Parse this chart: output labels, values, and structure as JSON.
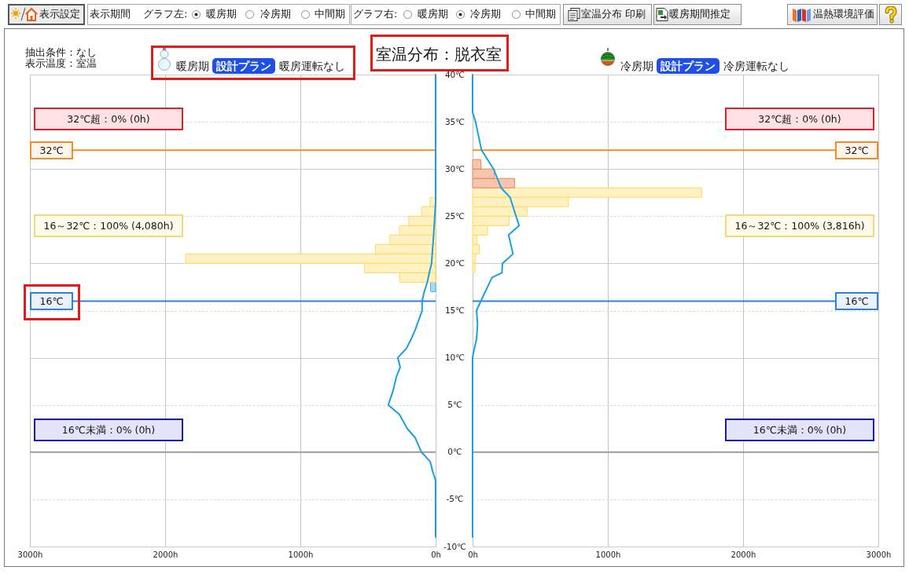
{
  "chart_data": [
    {
      "type": "other",
      "annotations": [
        "表示設定",
        "表示期間",
        "グラフ左:",
        "暖房期",
        "冷房期",
        "中間期",
        "グラフ右:",
        "暖房期",
        "冷房期",
        "中間期",
        "室温分布 印刷",
        "暖房期間推定",
        "温熱環境評価"
      ]
    },
    {
      "type": "histogram",
      "orientation": "horizontal",
      "title": "室温分布：脱衣室",
      "subtitle": "暖房期 設計プラン 暖房運転なし",
      "annotations": [
        "抽出条件：なし",
        "表示温度：室温",
        "32℃超：0% (0h)",
        "16～32℃：100% (4,080h)",
        "16℃未満：0% (0h)"
      ],
      "bins": [
        17,
        18,
        19,
        20,
        21,
        22,
        23,
        24,
        25,
        26,
        27
      ],
      "series": [
        {
          "values": [
            37,
            267,
            525,
            1849,
            445,
            338,
            267,
            198,
            105,
            41
          ],
          "colors": [
            "#a8daf2",
            "#fff1c2",
            "#fff1c2",
            "#fff1c2",
            "#fff1c2",
            "#fff1c2",
            "#fff1c2",
            "#fff1c2",
            "#fff1c2",
            "#fff1c2"
          ]
        },
        {
          "type": "line",
          "color": "#1a9fe0",
          "x": [
            40,
            26.5,
            23,
            20,
            19,
            18,
            17,
            16,
            15,
            13,
            12,
            11,
            10,
            9,
            8,
            6.5,
            5,
            4,
            2.5,
            1.5,
            0,
            -1,
            -2,
            -3,
            -9
          ],
          "values": [
            0,
            0,
            15,
            30,
            47,
            62,
            84,
            100,
            100,
            150,
            180,
            215,
            280,
            262,
            290,
            315,
            350,
            268,
            210,
            150,
            105,
            40,
            23,
            0,
            0
          ]
        }
      ],
      "xlim": [
        3000,
        0
      ],
      "xticks": [
        {
          "value": 3000,
          "label": "3000h"
        },
        {
          "value": 2000,
          "label": "2000h"
        },
        {
          "value": 1000,
          "label": "1000h"
        },
        {
          "value": 0,
          "label": "0h"
        }
      ],
      "ylim": [
        -10,
        40
      ],
      "yticks": [
        {
          "value": -10,
          "label": "-10℃"
        },
        {
          "value": -5,
          "label": "-5℃"
        },
        {
          "value": 0,
          "label": "0℃"
        },
        {
          "value": 5,
          "label": "5℃"
        },
        {
          "value": 10,
          "label": "10℃"
        },
        {
          "value": 15,
          "label": "15℃"
        },
        {
          "value": 20,
          "label": "20℃"
        },
        {
          "value": 25,
          "label": "25℃"
        },
        {
          "value": 30,
          "label": "30℃"
        },
        {
          "value": 35,
          "label": "35℃"
        },
        {
          "value": 40,
          "label": "40℃"
        }
      ],
      "grid": true,
      "ref_lines": [
        {
          "axis": "y",
          "value": 32,
          "label": "32℃",
          "color": "#f28c28"
        },
        {
          "axis": "y",
          "value": 16,
          "label": "16℃",
          "color": "#2d7fe6"
        },
        {
          "axis": "y",
          "value": 0,
          "color": "#a0a0a0"
        }
      ]
    },
    {
      "type": "histogram",
      "orientation": "horizontal",
      "subtitle": "冷房期 設計プラン 冷房運転なし",
      "annotations": [
        "32℃超：0% (0h)",
        "16～32℃：100% (3,816h)",
        "16℃未満：0% (0h)"
      ],
      "bins": [
        19,
        20,
        21,
        22,
        23,
        24,
        25,
        26,
        27,
        28,
        29,
        30,
        31
      ],
      "series": [
        {
          "values": [
            18,
            22,
            49,
            33,
            111,
            270,
            403,
            709,
            1694,
            310,
            162,
            62
          ],
          "colors": [
            "#fff1c2",
            "#fff1c2",
            "#fff1c2",
            "#fff1c2",
            "#fff1c2",
            "#fff1c2",
            "#fff1c2",
            "#fff1c2",
            "#fff1c2",
            "#f6c5ae",
            "#f6c5ae",
            "#f6c5ae"
          ]
        },
        {
          "type": "line",
          "color": "#1a9fe0",
          "x": [
            40,
            36,
            35,
            32,
            31,
            30,
            28,
            27,
            26,
            24,
            23,
            21,
            20,
            19,
            18.5,
            16.5,
            15,
            13.5,
            12,
            10.5,
            10,
            -9
          ],
          "values": [
            0,
            0,
            22,
            66,
            111,
            155,
            211,
            277,
            299,
            344,
            266,
            299,
            221,
            217,
            144,
            77,
            29,
            37,
            29,
            6,
            0,
            0
          ]
        }
      ],
      "xlim": [
        0,
        3000
      ],
      "xticks": [
        {
          "value": 0,
          "label": "0h"
        },
        {
          "value": 1000,
          "label": "1000h"
        },
        {
          "value": 2000,
          "label": "2000h"
        },
        {
          "value": 3000,
          "label": "3000h"
        }
      ],
      "ylim": [
        -10,
        40
      ],
      "yticks": [
        -10,
        -5,
        0,
        5,
        10,
        15,
        20,
        25,
        30,
        35,
        40
      ],
      "tick_labels": "x",
      "grid": true,
      "ref_lines": [
        {
          "axis": "y",
          "value": 32,
          "label": "32℃",
          "color": "#f28c28"
        },
        {
          "axis": "y",
          "value": 16,
          "label": "16℃",
          "color": "#2d7fe6"
        },
        {
          "axis": "y",
          "value": 0,
          "color": "#a0a0a0"
        }
      ]
    }
  ]
}
